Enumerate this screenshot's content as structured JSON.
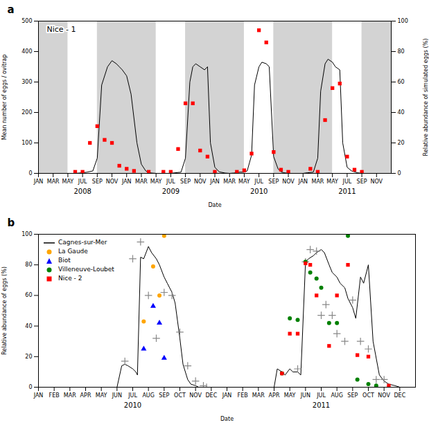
{
  "chart_data": [
    {
      "type": "line",
      "title": "Nice - 1",
      "panel_label": "a",
      "xlabel": "Date",
      "ylabel": "Mean number of eggs / ovitrap",
      "y2label": "Relative abundance of simulated eggs (%)",
      "xlim": [
        0,
        24
      ],
      "xticks": [
        {
          "value": 0,
          "label": "JAN"
        },
        {
          "value": 1,
          "label": "MAR"
        },
        {
          "value": 2,
          "label": "MAY"
        },
        {
          "value": 3,
          "label": "JUL"
        },
        {
          "value": 4,
          "label": "SEP"
        },
        {
          "value": 5,
          "label": "NOV"
        },
        {
          "value": 6,
          "label": "JAN"
        },
        {
          "value": 7,
          "label": "MAR"
        },
        {
          "value": 8,
          "label": "MAY"
        },
        {
          "value": 9,
          "label": "JUL"
        },
        {
          "value": 10,
          "label": "SEP"
        },
        {
          "value": 11,
          "label": "NOV"
        },
        {
          "value": 12,
          "label": "JAN"
        },
        {
          "value": 13,
          "label": "MAR"
        },
        {
          "value": 14,
          "label": "MAY"
        },
        {
          "value": 15,
          "label": "JUL"
        },
        {
          "value": 16,
          "label": "SEP"
        },
        {
          "value": 17,
          "label": "NOV"
        },
        {
          "value": 18,
          "label": "JAN"
        },
        {
          "value": 19,
          "label": "MAR"
        },
        {
          "value": 20,
          "label": "MAY"
        },
        {
          "value": 21,
          "label": "JUL"
        },
        {
          "value": 22,
          "label": "SEP"
        },
        {
          "value": 23,
          "label": "NOV"
        }
      ],
      "ylim": [
        0,
        500
      ],
      "yticks": [
        0,
        100,
        200,
        300,
        400,
        500
      ],
      "y2lim": [
        0,
        100
      ],
      "y2ticks": [
        0,
        20,
        40,
        60,
        80,
        100
      ],
      "bands": {
        "color": "#d3d3d3",
        "ranges": [
          [
            0,
            2
          ],
          [
            4,
            8
          ],
          [
            10,
            14
          ],
          [
            16,
            20
          ],
          [
            22,
            24
          ]
        ]
      },
      "series": [
        {
          "type": "line",
          "color": "black",
          "x": [
            0,
            0.2,
            0.5,
            1.0,
            1.5,
            2.0,
            2.5,
            3.0,
            3.3,
            3.7,
            4.0,
            4.3,
            4.7,
            5.0,
            5.3,
            5.5,
            5.7,
            6.0,
            6.3,
            6.7,
            7.0,
            7.3,
            7.5,
            7.7,
            8.0,
            8.3,
            8.7,
            9.0,
            9.3,
            9.7,
            10.0,
            10.3,
            10.5,
            10.7,
            11.0,
            11.3,
            11.5,
            11.7,
            12.0,
            12.3,
            12.7,
            13.0,
            13.3,
            13.7,
            14.0,
            14.2,
            14.5,
            14.7,
            15.0,
            15.2,
            15.5,
            15.7,
            16.0,
            16.3,
            16.5,
            16.7,
            17.0,
            17.3,
            17.7,
            18.0,
            18.3,
            18.7,
            19.0,
            19.2,
            19.5,
            19.7,
            20.0,
            20.2,
            20.5,
            20.7,
            21.0,
            21.3,
            21.7,
            22.0,
            22.3,
            22.7,
            23.0,
            23.5
          ],
          "values": [
            0,
            0,
            0,
            0,
            0,
            0,
            0,
            2,
            4,
            8,
            50,
            290,
            350,
            370,
            360,
            350,
            340,
            320,
            260,
            100,
            30,
            8,
            3,
            1,
            0,
            0,
            0,
            0,
            2,
            4,
            50,
            300,
            350,
            360,
            350,
            340,
            350,
            100,
            20,
            5,
            1,
            0,
            1,
            4,
            4,
            8,
            60,
            290,
            350,
            365,
            360,
            350,
            55,
            15,
            5,
            2,
            0,
            0,
            0,
            0,
            2,
            4,
            50,
            270,
            360,
            375,
            365,
            350,
            340,
            100,
            20,
            8,
            2,
            0,
            0,
            0,
            0,
            0
          ]
        },
        {
          "type": "scatter",
          "marker": "square",
          "color": "red",
          "x": [
            2.5,
            3.0,
            3.5,
            4.0,
            4.5,
            5.0,
            5.5,
            6.0,
            6.5,
            7.5,
            8.5,
            9.0,
            9.5,
            10.0,
            10.5,
            11.0,
            11.5,
            12.0,
            13.5,
            14.0,
            14.5,
            15.0,
            15.5,
            16.0,
            16.5,
            17.0,
            18.5,
            19.0,
            19.5,
            20.0,
            20.5,
            21.0,
            21.5,
            22.0
          ],
          "values": [
            5,
            5,
            100,
            155,
            110,
            100,
            25,
            15,
            8,
            5,
            5,
            5,
            80,
            230,
            230,
            75,
            55,
            5,
            5,
            10,
            65,
            470,
            430,
            70,
            12,
            5,
            15,
            5,
            175,
            280,
            295,
            55,
            12,
            5
          ]
        }
      ],
      "annotations": [
        {
          "text": "2008",
          "x": 3
        },
        {
          "text": "2009",
          "x": 9
        },
        {
          "text": "2010",
          "x": 15
        },
        {
          "text": "2011",
          "x": 21
        }
      ]
    },
    {
      "type": "line",
      "panel_label": "b",
      "xlabel": "Date",
      "ylabel": "Relative abundance of eggs (%)",
      "xlim": [
        0,
        24
      ],
      "xticks": [
        {
          "value": 0,
          "label": "JAN"
        },
        {
          "value": 1,
          "label": "FEB"
        },
        {
          "value": 2,
          "label": "MAR"
        },
        {
          "value": 3,
          "label": "APR"
        },
        {
          "value": 4,
          "label": "MAY"
        },
        {
          "value": 5,
          "label": "JUN"
        },
        {
          "value": 6,
          "label": "JUL"
        },
        {
          "value": 7,
          "label": "AUG"
        },
        {
          "value": 8,
          "label": "SEP"
        },
        {
          "value": 9,
          "label": "OCT"
        },
        {
          "value": 10,
          "label": "NOV"
        },
        {
          "value": 11,
          "label": "DEC"
        },
        {
          "value": 12,
          "label": "JAN"
        },
        {
          "value": 13,
          "label": "FEB"
        },
        {
          "value": 14,
          "label": "MAR"
        },
        {
          "value": 15,
          "label": "APR"
        },
        {
          "value": 16,
          "label": "MAY"
        },
        {
          "value": 17,
          "label": "JUN"
        },
        {
          "value": 18,
          "label": "JUL"
        },
        {
          "value": 19,
          "label": "AUG"
        },
        {
          "value": 20,
          "label": "SEP"
        },
        {
          "value": 21,
          "label": "OCT"
        },
        {
          "value": 22,
          "label": "NOV"
        },
        {
          "value": 23,
          "label": "DEC"
        }
      ],
      "ylim": [
        0,
        100
      ],
      "yticks": [
        0,
        20,
        40,
        60,
        80,
        100
      ],
      "legend": "upper left",
      "series": [
        {
          "name": "Cagnes-sur-Mer",
          "type": "line",
          "color": "black",
          "x": [
            0,
            0.3,
            0.5,
            1.0,
            1.5,
            2.0,
            2.5,
            3.0,
            3.5,
            4.0,
            4.5,
            5.0,
            5.3,
            5.5,
            5.7,
            6.0,
            6.2,
            6.3,
            6.5,
            6.7,
            7.0,
            7.2,
            7.5,
            7.7,
            8.0,
            8.2,
            8.5,
            8.7,
            9.0,
            9.2,
            9.5,
            9.7,
            10.0,
            10.2,
            10.5,
            10.7,
            11.0,
            11.3,
            11.7,
            12.0,
            12.3,
            12.7,
            13.0,
            13.3,
            13.7,
            14.0,
            14.3,
            14.7,
            15.0,
            15.2,
            15.5,
            15.7,
            16.0,
            16.2,
            16.5,
            16.7,
            17.0,
            17.2,
            17.5,
            17.7,
            18.0,
            18.2,
            18.5,
            18.7,
            19.0,
            19.2,
            19.5,
            19.7,
            20.0,
            20.2,
            20.5,
            20.7,
            21.0,
            21.3,
            21.7,
            22.0,
            22.3,
            22.7,
            23.0,
            23.5
          ],
          "values": [
            0,
            0,
            0,
            0,
            0,
            0,
            0,
            0,
            0,
            0,
            0,
            0,
            14,
            15,
            14,
            12,
            10,
            8,
            85,
            84,
            92,
            88,
            84,
            80,
            72,
            68,
            62,
            55,
            32,
            15,
            5,
            2,
            1,
            0,
            0,
            0,
            0,
            0,
            0,
            0,
            0,
            0,
            0,
            0,
            0,
            0,
            0,
            0,
            0,
            12,
            10,
            8,
            12,
            10,
            10,
            8,
            82,
            84,
            86,
            88,
            90,
            88,
            80,
            75,
            72,
            68,
            65,
            58,
            52,
            45,
            72,
            68,
            80,
            30,
            8,
            4,
            2,
            1,
            0,
            0
          ]
        },
        {
          "type": "scatter",
          "marker": "plus",
          "color": "#888888",
          "x": [
            5.5,
            6.0,
            6.5,
            7.0,
            7.5,
            8.0,
            8.5,
            9.0,
            9.5,
            10.0,
            10.5,
            10.7,
            16.5,
            17.0,
            17.3,
            17.7,
            18.0,
            18.3,
            18.7,
            19.0,
            19.5,
            20.0,
            20.5,
            21.0,
            21.5,
            22.0
          ],
          "values": [
            17,
            84,
            95,
            60,
            32,
            62,
            60,
            36,
            14,
            4,
            1,
            0,
            12,
            82,
            90,
            89,
            47,
            54,
            47,
            35,
            30,
            57,
            30,
            25,
            5,
            5
          ]
        },
        {
          "name": "La Gaude",
          "type": "scatter",
          "marker": "circle",
          "color": "orange",
          "x": [
            6.7,
            7.3,
            7.7,
            8.0
          ],
          "values": [
            43,
            79,
            60,
            99
          ]
        },
        {
          "name": "Biot",
          "type": "scatter",
          "marker": "triangle",
          "color": "blue",
          "x": [
            6.7,
            7.3,
            7.7,
            8.0
          ],
          "values": [
            25,
            53,
            42,
            19
          ]
        },
        {
          "name": "Villeneuve-Loubet",
          "type": "scatter",
          "marker": "circle",
          "color": "green",
          "x": [
            15.5,
            16.0,
            16.5,
            17.0,
            17.3,
            17.7,
            18.0,
            18.5,
            19.0,
            19.7,
            20.3,
            21.0,
            21.5
          ],
          "values": [
            9,
            45,
            44,
            82,
            75,
            71,
            65,
            42,
            42,
            99,
            5,
            2,
            1
          ]
        },
        {
          "name": "Nice - 2",
          "type": "scatter",
          "marker": "square",
          "color": "red",
          "x": [
            15.5,
            16.0,
            16.5,
            17.0,
            17.3,
            17.7,
            18.5,
            19.0,
            19.7,
            20.3,
            21.0,
            22.3
          ],
          "values": [
            9,
            35,
            35,
            81,
            80,
            60,
            27,
            60,
            80,
            21,
            20,
            1
          ]
        }
      ],
      "annotations": [
        {
          "text": "2010",
          "x": 6
        },
        {
          "text": "2011",
          "x": 18
        }
      ]
    }
  ]
}
